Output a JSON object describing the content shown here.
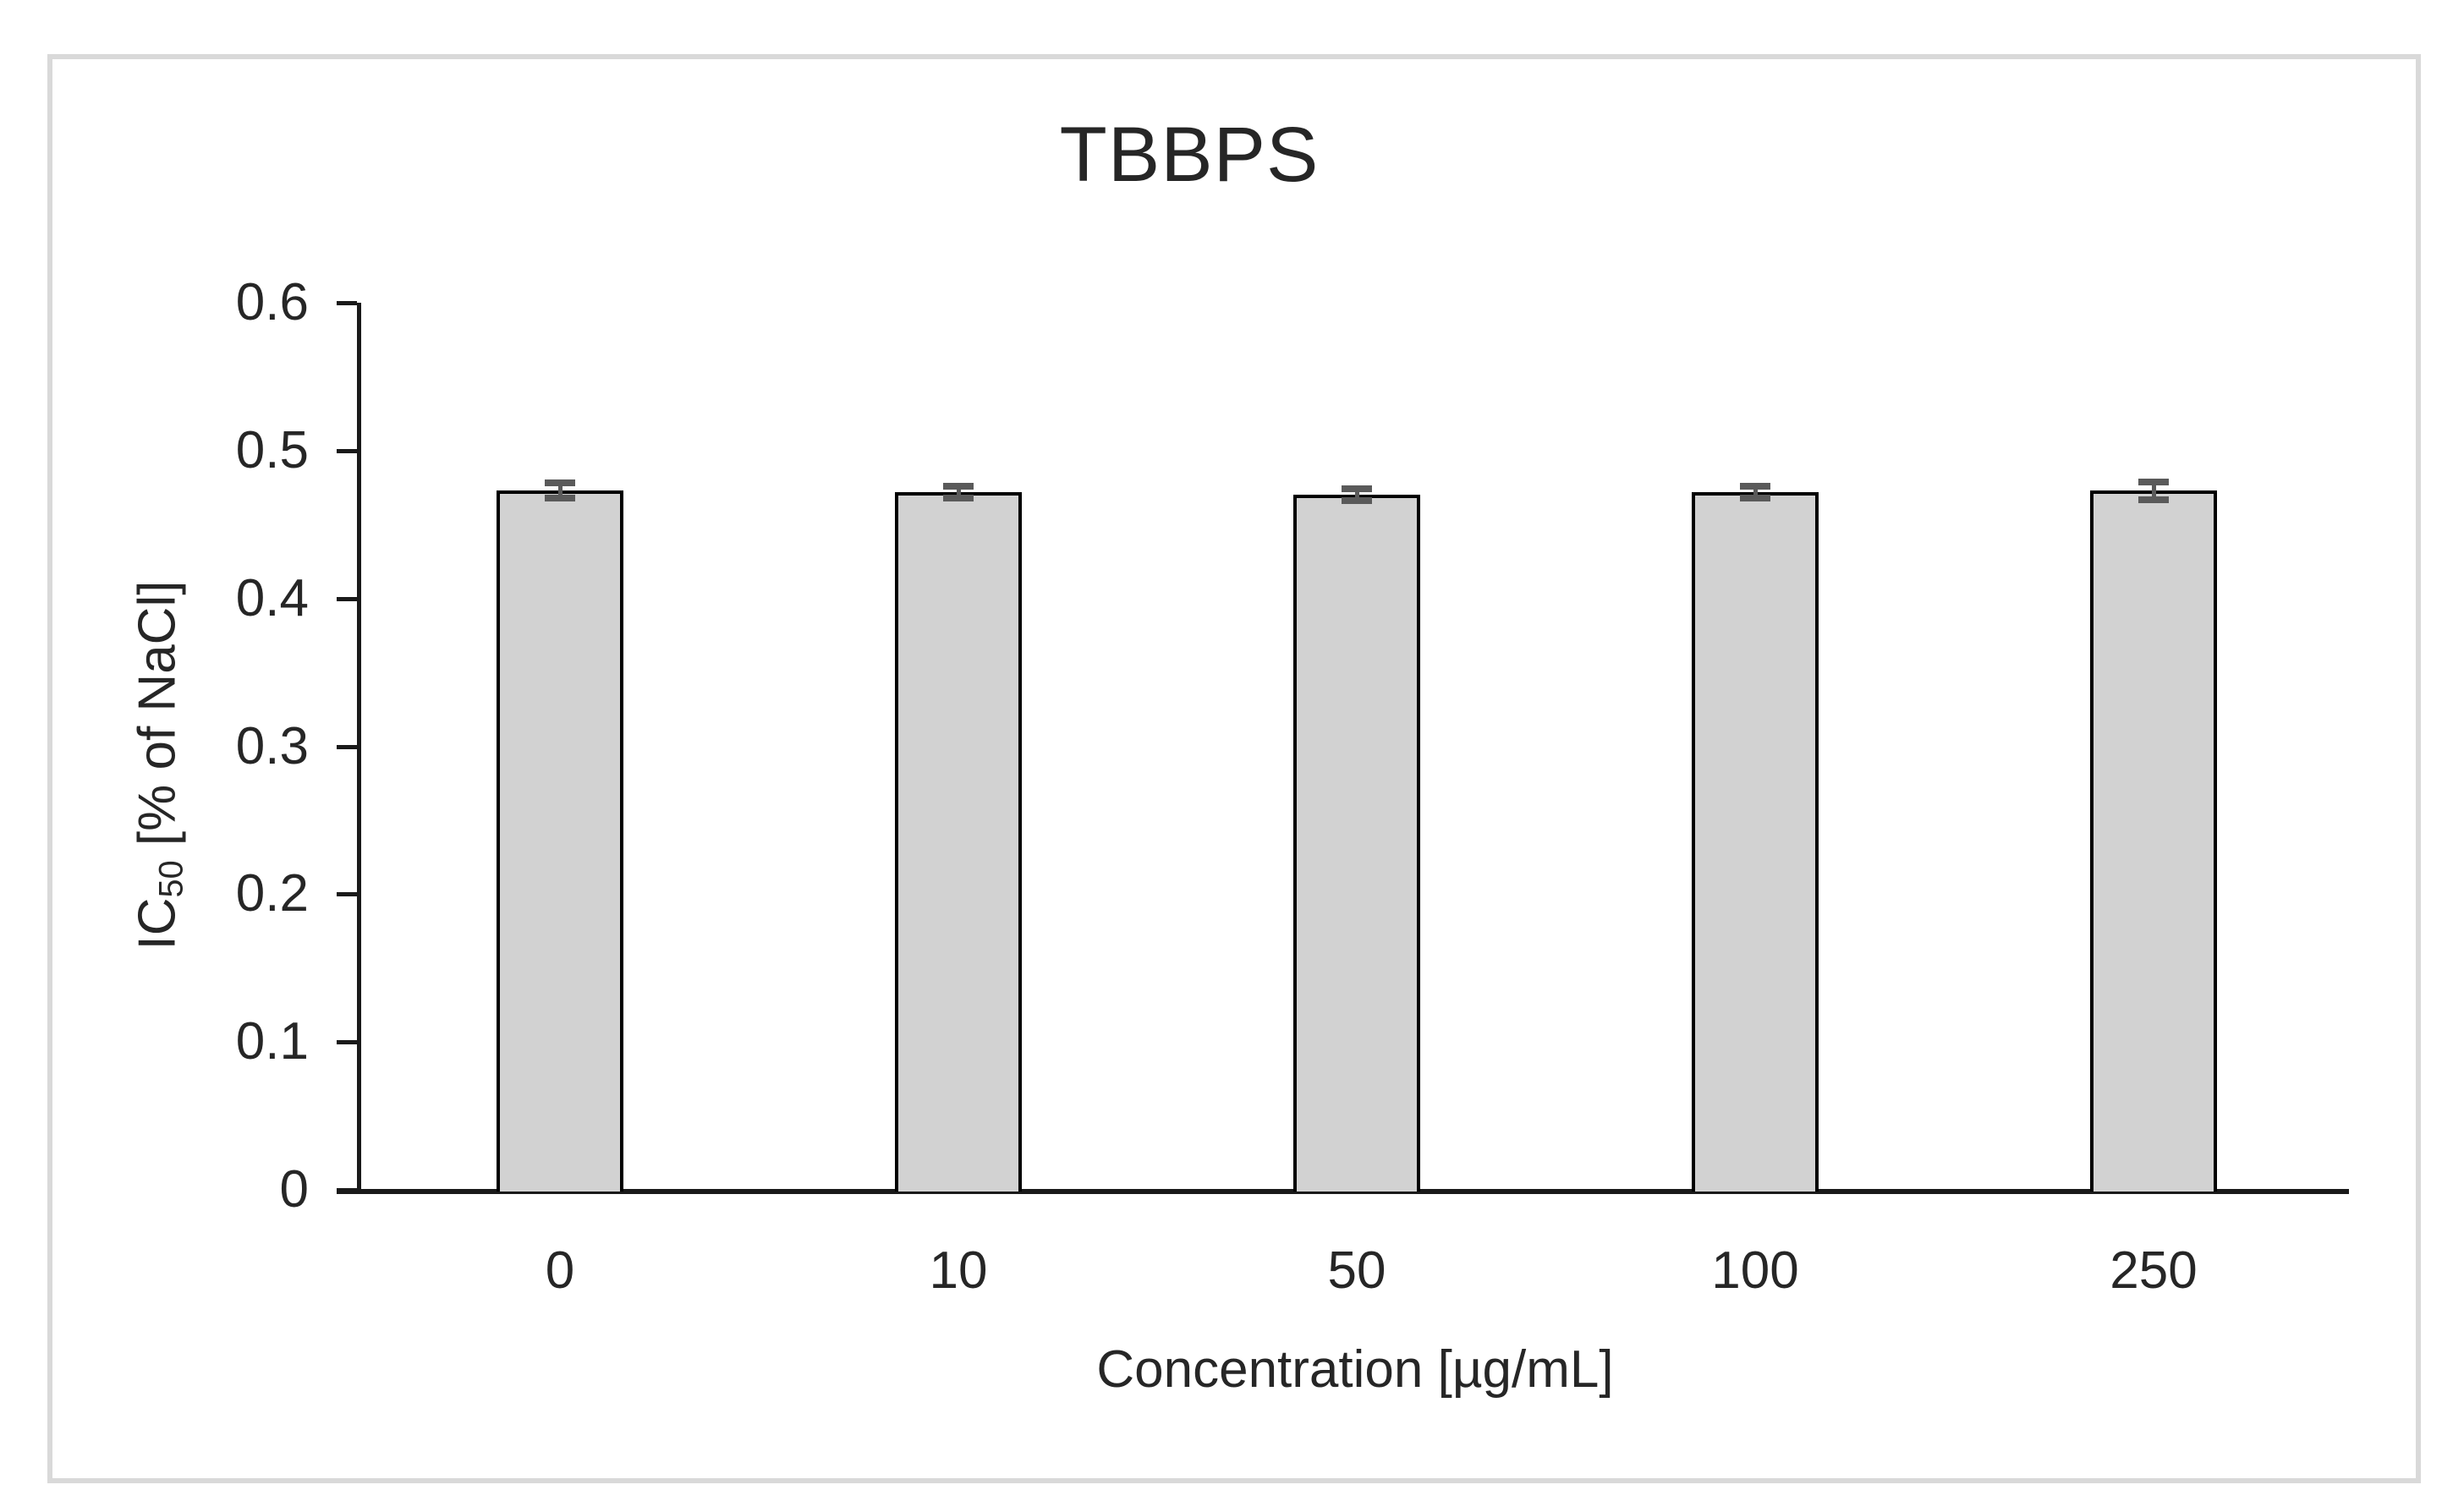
{
  "chart": {
    "title": "TBBPS",
    "xlabel": "Concentration [µg/mL]",
    "ylabel_prefix": "IC",
    "ylabel_sub": "50",
    "ylabel_suffix": " [% of NaCl]"
  },
  "chart_data": {
    "type": "bar",
    "title": "TBBPS",
    "xlabel": "Concentration [µg/mL]",
    "ylabel": "IC50 [% of NaCl]",
    "categories": [
      "0",
      "10",
      "50",
      "100",
      "250"
    ],
    "values": [
      0.473,
      0.472,
      0.47,
      0.472,
      0.473
    ],
    "errors": [
      0.005,
      0.004,
      0.004,
      0.004,
      0.006
    ],
    "ylim": [
      0,
      0.6
    ],
    "ytick_step": 0.1,
    "yticks": [
      0,
      0.1,
      0.2,
      0.3,
      0.4,
      0.5,
      0.6
    ],
    "grid": false,
    "legend": false,
    "bar_fill": "#d2d2d2",
    "bar_border": "#000000",
    "error_color": "#5a5a5a",
    "axis_color": "#1a1a1a",
    "frame_border": "#d9d9d9"
  }
}
